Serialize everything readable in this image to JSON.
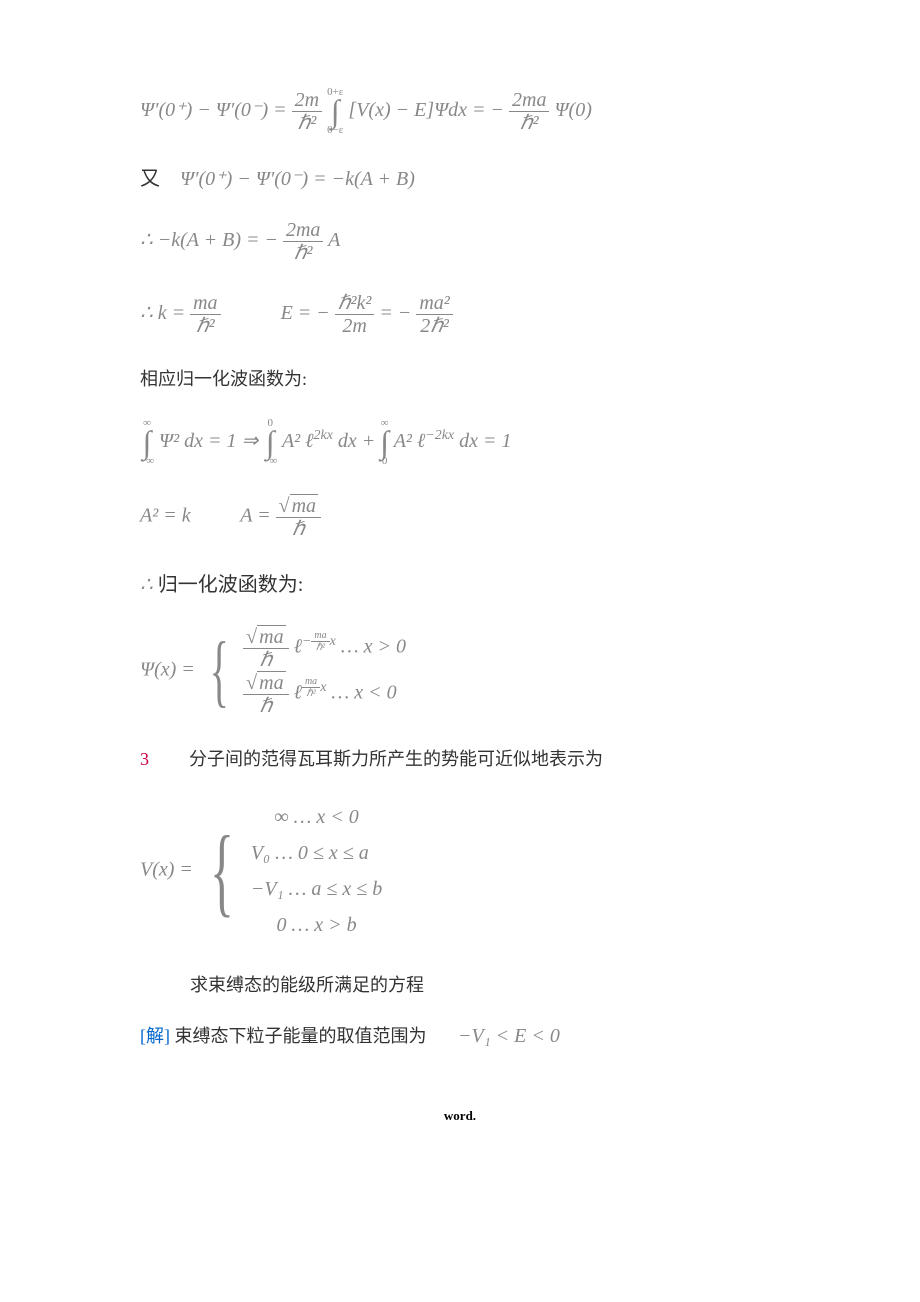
{
  "eq1": {
    "lhs": "Ψ′(0⁺) − Ψ′(0⁻) =",
    "frac1_num": "2m",
    "frac1_den": "ℏ²",
    "int_upper": "0+ε",
    "int_lower": "0−ε",
    "integrand": "[V(x) − E]Ψdx = −",
    "frac2_num": "2ma",
    "frac2_den": "ℏ²",
    "tail": "Ψ(0)"
  },
  "eq2": {
    "prefix_cn": "又",
    "text": "Ψ′(0⁺) − Ψ′(0⁻) = −k(A + B)"
  },
  "eq3": {
    "prefix": "∴ −k(A + B) = −",
    "frac_num": "2ma",
    "frac_den": "ℏ²",
    "tail": "A"
  },
  "eq4": {
    "p1_prefix": "∴ k =",
    "p1_num": "ma",
    "p1_den": "ℏ²",
    "p2_prefix": "E = −",
    "p2_num": "ℏ²k²",
    "p2_den": "2m",
    "p2_mid": " = −",
    "p3_num": "ma²",
    "p3_den": "2ℏ²"
  },
  "text1": "相应归一化波函数为:",
  "eq5": {
    "int1_u": "∞",
    "int1_l": "−∞",
    "p1": "Ψ² dx = 1 ⇒",
    "int2_u": "0",
    "int2_l": "−∞",
    "p2": "A² ℓ",
    "p2_exp": "2kx",
    "p2_tail": "dx +",
    "int3_u": "∞",
    "int3_l": "0",
    "p3": "A² ℓ",
    "p3_exp": "−2kx",
    "p3_tail": "dx = 1"
  },
  "eq6": {
    "p1": "A² = k",
    "p2_lhs": "A =",
    "p2_num_rad": "ma",
    "p2_den": "ℏ"
  },
  "text2_prefix": "∴",
  "text2": "归一化波函数为:",
  "eq7": {
    "lhs": "Ψ(x) =",
    "r1_num_rad": "ma",
    "r1_num_den": "ℏ",
    "r1_exp_num": "ma",
    "r1_exp_den": "ℏ²",
    "r1_exp_tail": "x",
    "r1_cond": "… x > 0",
    "r2_num_rad": "ma",
    "r2_num_den": "ℏ",
    "r2_exp_num": "ma",
    "r2_exp_den": "ℏ²",
    "r2_exp_tail": "x",
    "r2_cond": "… x < 0"
  },
  "problem3": {
    "num": "3",
    "text": "分子间的范得瓦耳斯力所产生的势能可近似地表示为"
  },
  "eq8": {
    "lhs": "V(x) =",
    "r1": "∞ … x < 0",
    "r2": "V₀ … 0 ≤ x ≤ a",
    "r3": "−V₁ … a ≤ x ≤ b",
    "r4": "0 … x > b"
  },
  "text3": "求束缚态的能级所满足的方程",
  "sol": {
    "label": "[解]",
    "text": "束缚态下粒子能量的取值范围为",
    "eq": "−V₁ < E < 0"
  },
  "footer": "word."
}
